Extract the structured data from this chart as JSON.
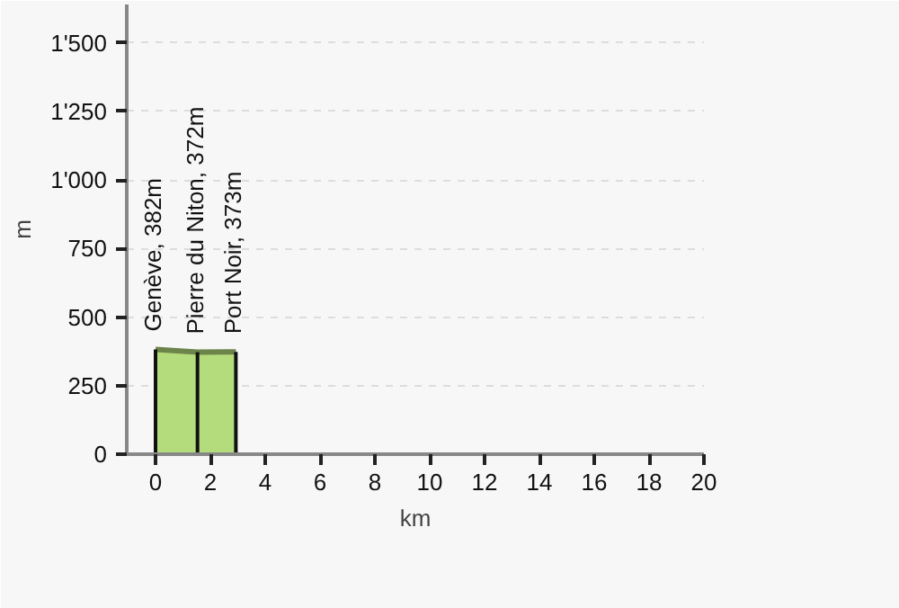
{
  "chart_data": {
    "type": "area",
    "x": [
      0,
      1.53,
      2.93
    ],
    "series": [
      {
        "color": "#b5dc7c",
        "values": [
          382,
          372,
          373
        ]
      }
    ],
    "xlabel": "km",
    "ylabel": "m",
    "xlim": [
      -1.05,
      20
    ],
    "ylim": [
      0,
      1640
    ],
    "xticks": [
      0,
      2,
      4,
      6,
      8,
      10,
      12,
      14,
      16,
      18,
      20
    ],
    "yticks": [
      0,
      250,
      500,
      750,
      {
        "value": 1000,
        "label": "1'000"
      },
      {
        "value": 1250,
        "label": "1'250"
      },
      {
        "value": 1500,
        "label": "1'500"
      }
    ],
    "grid": "y",
    "annotations": [
      {
        "text": "Genève, 382m",
        "x": 0,
        "y": 382
      },
      {
        "text": "Pierre du Niton, 372m",
        "x": 1.53,
        "y": 372
      },
      {
        "text": "Port Noir, 373m",
        "x": 2.93,
        "y": 373
      }
    ]
  }
}
